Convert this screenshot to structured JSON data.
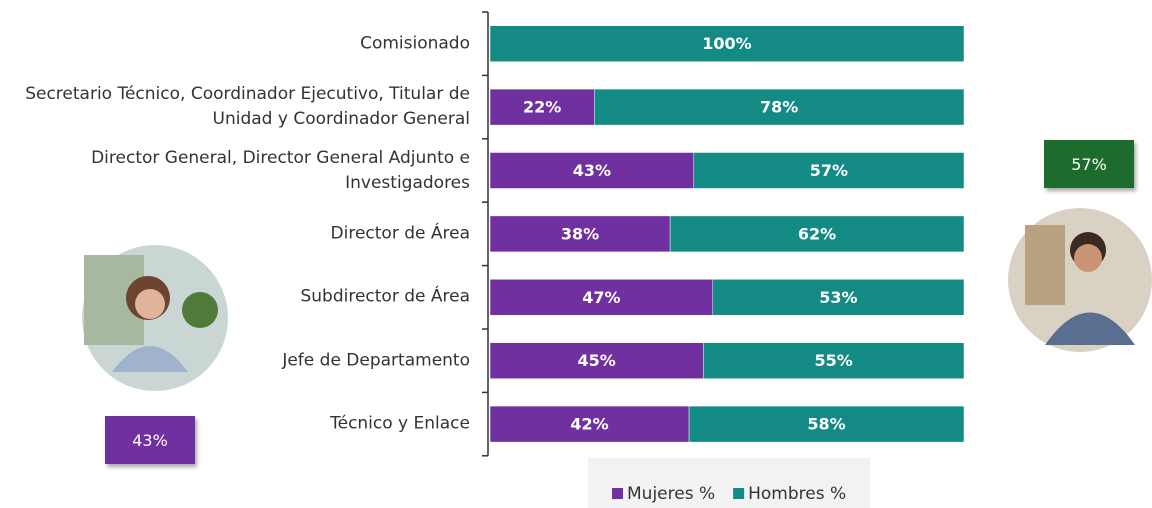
{
  "chart_data": {
    "type": "stacked_barh",
    "categories": [
      "Comisionado",
      "Secretario Técnico, Coordinador Ejecutivo, Titular de\nUnidad y Coordinador General",
      "Director General, Director General Adjunto e\nInvestigadores",
      "Director de Área",
      "Subdirector de Área",
      "Jefe de Departamento",
      "Técnico y Enlace"
    ],
    "series": [
      {
        "name": "Mujeres %",
        "color": "#7030a0",
        "values": [
          0,
          22,
          43,
          38,
          47,
          45,
          42
        ],
        "value_labels": [
          null,
          "22%",
          "43%",
          "38%",
          "47%",
          "45%",
          "42%"
        ]
      },
      {
        "name": "Hombres %",
        "color": "#138a84",
        "values": [
          100,
          78,
          57,
          62,
          53,
          55,
          58
        ],
        "value_labels": [
          "100%",
          "78%",
          "57%",
          "62%",
          "53%",
          "55%",
          "58%"
        ]
      }
    ],
    "xlim": [
      0,
      100
    ],
    "legend": "bottom",
    "annotations": [
      {
        "text": "43%",
        "color": "#7030a0"
      },
      {
        "text": "57%",
        "color": "#1e6b2e"
      }
    ]
  }
}
